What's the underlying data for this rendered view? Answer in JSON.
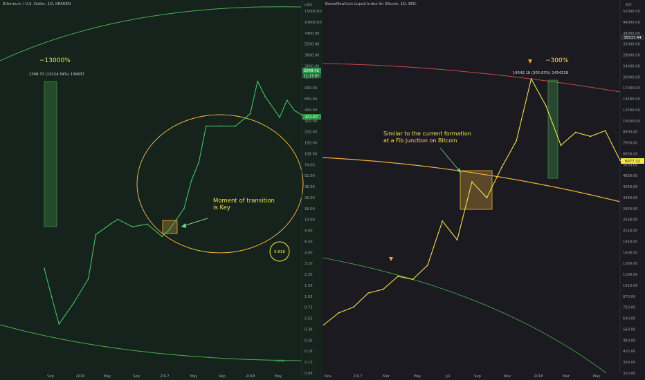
{
  "colors": {
    "eth_line": "#43c466",
    "btc_line": "#f5e34c",
    "ellipse_orange": "#f2b33c",
    "ellipse_green": "#4caf50",
    "fan_red": "#c94a4a",
    "annotation_text": "#f5e34c",
    "arrow_green": "#7fd67f",
    "price_green": "#2e9c4a",
    "price_yellow": "#f7e74a"
  },
  "left_chart": {
    "title": "Ethereum / U.S. Dollar, 1D, KRAKEN",
    "axis_unit": "USD",
    "y_ticks": [
      "15000.00",
      "10600.00",
      "7400.00",
      "5200.00",
      "3600.00",
      "2600.00",
      "1300.00",
      "900.00",
      "650.00",
      "450.00",
      "310.00",
      "220.00",
      "150.00",
      "106.00",
      "74.00",
      "52.00",
      "36.00",
      "26.00",
      "18.00",
      "13.00",
      "9.00",
      "6.50",
      "4.50",
      "3.10",
      "2.20",
      "1.50",
      "1.05",
      "0.73",
      "0.53",
      "0.38",
      "0.26",
      "0.18",
      "0.13",
      "0.09"
    ],
    "x_ticks": [
      "Sep",
      "2016",
      "May",
      "Sep",
      "2017",
      "May",
      "Sep",
      "2018",
      "May"
    ],
    "price_label": "2048.42",
    "countdown_label": "11:17:07",
    "current_price_label": "431.67",
    "measure_label": "1398.37 (13224.54%) 139837",
    "big_annotation": "~13000%",
    "transition_note_line1": "Moment of transition",
    "transition_note_line2": "is Key",
    "fib_label": "0.618",
    "fib_label_small": "1.618",
    "chart_data": {
      "type": "line",
      "title": "Ethereum / U.S. Dollar, 1D, KRAKEN",
      "yscale": "log",
      "ylim": [
        0.09,
        15000
      ],
      "xlabel": "",
      "ylabel": "USD",
      "x": [
        "2015-08",
        "2015-09",
        "2015-10",
        "2015-12",
        "2016-02",
        "2016-03",
        "2016-05",
        "2016-06",
        "2016-08",
        "2016-10",
        "2016-12",
        "2017-01",
        "2017-03",
        "2017-04",
        "2017-05",
        "2017-06",
        "2017-08",
        "2017-10",
        "2017-12",
        "2018-01",
        "2018-02",
        "2018-04",
        "2018-05",
        "2018-06",
        "2018-07"
      ],
      "values": [
        2.8,
        1.1,
        0.45,
        0.9,
        2.0,
        8.5,
        12,
        14,
        11,
        12,
        8.0,
        10,
        20,
        50,
        90,
        300,
        300,
        300,
        450,
        1300,
        800,
        400,
        700,
        500,
        431
      ]
    }
  },
  "right_chart": {
    "title": "BraveNewCoin Liquid Index for Bitcoin, 1D, BNC",
    "axis_unit": "BTC",
    "y_ticks": [
      "52000.00",
      "44000.00",
      "38000.00",
      "33000.00",
      "28000.00",
      "24000.00",
      "20000.00",
      "17000.00",
      "14500.00",
      "12500.00",
      "10500.00",
      "8900.00",
      "7650.00",
      "6650.00",
      "5650.00",
      "4850.00",
      "4050.00",
      "3450.00",
      "2950.00",
      "2550.00",
      "2150.00",
      "1850.00",
      "1600.00",
      "1360.00",
      "1160.00",
      "1010.00",
      "870.00",
      "750.00",
      "640.00",
      "560.00",
      "480.00",
      "415.00",
      "359.00",
      "310.00"
    ],
    "x_ticks": [
      "Nov",
      "2017",
      "Mar",
      "May",
      "Jul",
      "Sep",
      "Nov",
      "2018",
      "Mar",
      "May"
    ],
    "price_label": "35517.44",
    "current_price_label": "6077.32",
    "measure_label": "14542.18 (305.03%) 1454218",
    "big_annotation": "~300%",
    "formation_note_line1": "Similar to the current formation",
    "formation_note_line2": "at a Fib junction on Bitcoin",
    "chart_data": {
      "type": "line",
      "title": "BraveNewCoin Liquid Index for Bitcoin, 1D, BNC",
      "yscale": "log",
      "ylim": [
        310,
        52000
      ],
      "xlabel": "",
      "ylabel": "BTC",
      "x": [
        "2016-10",
        "2016-11",
        "2016-12",
        "2017-01",
        "2017-02",
        "2017-03",
        "2017-04",
        "2017-05",
        "2017-06",
        "2017-07",
        "2017-08",
        "2017-09",
        "2017-10",
        "2017-11",
        "2017-12",
        "2018-01",
        "2018-02",
        "2018-03",
        "2018-04",
        "2018-05",
        "2018-06"
      ],
      "values": [
        610,
        720,
        780,
        950,
        1000,
        1200,
        1150,
        1400,
        2600,
        2000,
        4500,
        3600,
        5500,
        8000,
        19000,
        13000,
        7500,
        9000,
        8500,
        9200,
        6077
      ]
    }
  }
}
